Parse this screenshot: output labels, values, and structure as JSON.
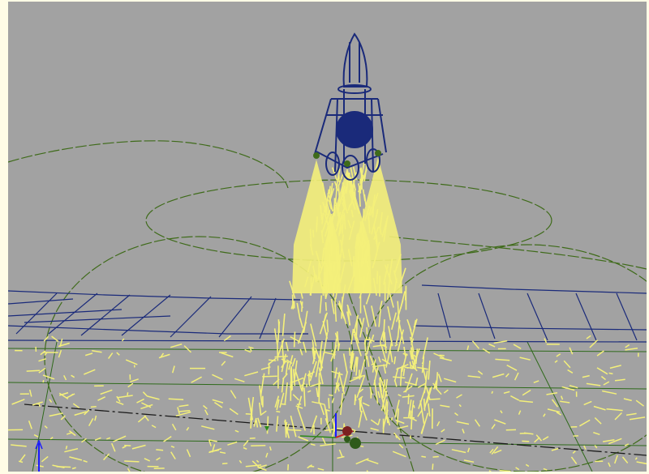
{
  "viewport": {
    "name": "perspective-viewport",
    "background_color": "#a2a2a2",
    "frame_color": "#fffce6"
  },
  "scene": {
    "rocket_color": "#1a2a7a",
    "exhaust_color": "#f4f07a",
    "grid_color": "#1a2a7a",
    "emitter_circle_color": "#3f6b1a",
    "ground_grid_color": "#2e6a1a",
    "gizmo_axis_y_color": "#1a1aff",
    "gizmo_axis_x_color": "#cc2222",
    "gizmo_axis_z_color": "#2e8a1a"
  }
}
